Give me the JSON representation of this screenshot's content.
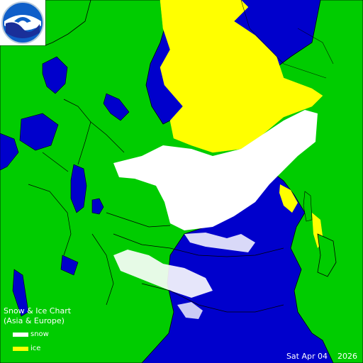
{
  "title": "Snow & Ice Chart",
  "subtitle": "(Asia & Europe)",
  "legend": [
    {
      "label": "snow",
      "color": "#ffffff"
    },
    {
      "label": "ice",
      "color": "#ffff00"
    }
  ],
  "date": "Sat Apr 04    2026",
  "logo": {
    "text": "NOAA"
  },
  "colors": {
    "water": "#0000cc",
    "land": "#00cc00",
    "snow": "#ffffff",
    "ice": "#ffff00",
    "borders": "#000000"
  }
}
